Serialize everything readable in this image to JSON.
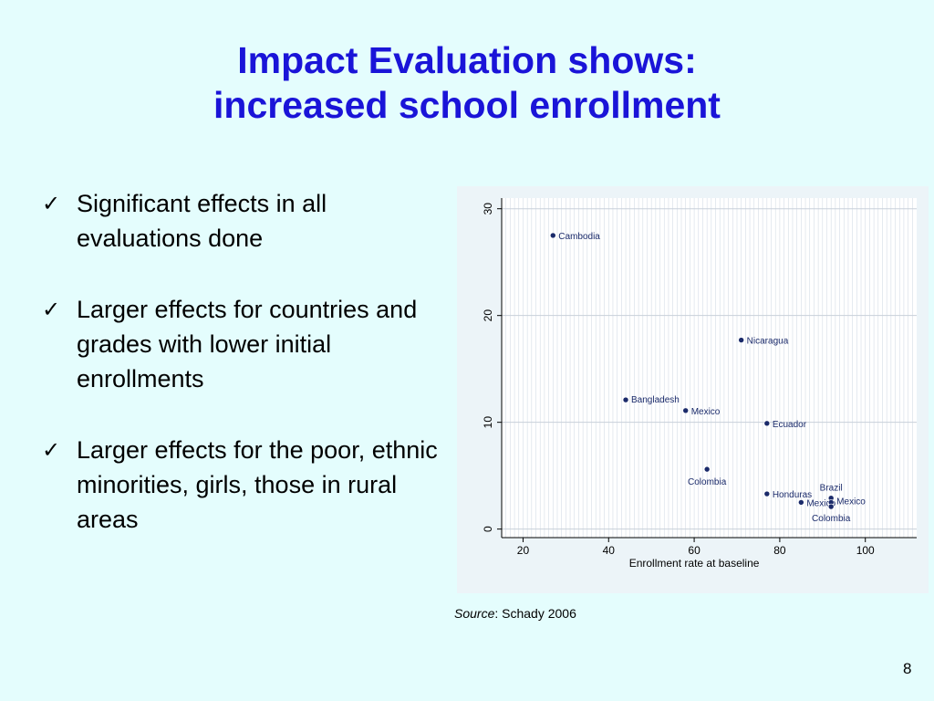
{
  "slide": {
    "title_line1": "Impact Evaluation shows:",
    "title_line2": "increased school enrollment",
    "bullets": [
      "Significant effects in all evaluations done",
      "Larger effects for countries and grades with lower initial enrollments",
      "Larger effects for the poor, ethnic minorities, girls, those in rural areas"
    ],
    "check_glyph": "✓",
    "source_label": "Source",
    "source_text": ": Schady 2006",
    "page_number": "8"
  },
  "colors": {
    "title": "#1a14d8",
    "background": "#e4fdfd",
    "marker": "#1a2a6a",
    "label": "#1a2a6a"
  },
  "chart_data": {
    "type": "scatter",
    "xlabel": "Enrollment rate at baseline",
    "ylabel": "",
    "xlim": [
      15,
      112
    ],
    "ylim": [
      -0.8,
      31
    ],
    "xticks": [
      20,
      40,
      60,
      80,
      100
    ],
    "yticks": [
      0,
      10,
      20,
      30
    ],
    "grid": true,
    "points": [
      {
        "label": "Cambodia",
        "x": 27,
        "y": 27.5
      },
      {
        "label": "Nicaragua",
        "x": 71,
        "y": 17.7
      },
      {
        "label": "Bangladesh",
        "x": 44,
        "y": 12.1
      },
      {
        "label": "Mexico",
        "x": 58,
        "y": 11.1
      },
      {
        "label": "Ecuador",
        "x": 77,
        "y": 9.9
      },
      {
        "label": "Colombia",
        "x": 63,
        "y": 5.6
      },
      {
        "label": "Honduras",
        "x": 77,
        "y": 3.3
      },
      {
        "label": "Brazil",
        "x": 92,
        "y": 2.9
      },
      {
        "label": "Mexico",
        "x": 85,
        "y": 2.5
      },
      {
        "label": "Mexico",
        "x": 92,
        "y": 2.5
      },
      {
        "label": "Colombia",
        "x": 92,
        "y": 2.1
      }
    ]
  }
}
